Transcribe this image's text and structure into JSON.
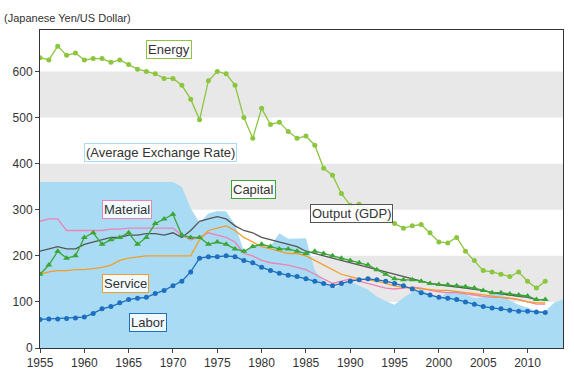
{
  "chart_data": {
    "type": "line",
    "ylabel": "(Japanese Yen/US Dollar)",
    "x": [
      1955,
      1956,
      1957,
      1958,
      1959,
      1960,
      1961,
      1962,
      1963,
      1964,
      1965,
      1966,
      1967,
      1968,
      1969,
      1970,
      1971,
      1972,
      1973,
      1974,
      1975,
      1976,
      1977,
      1978,
      1979,
      1980,
      1981,
      1982,
      1983,
      1984,
      1985,
      1986,
      1987,
      1988,
      1989,
      1990,
      1991,
      1992,
      1993,
      1994,
      1995,
      1996,
      1997,
      1998,
      1999,
      2000,
      2001,
      2002,
      2003,
      2004,
      2005,
      2006,
      2007,
      2008,
      2009,
      2010,
      2011,
      2012,
      2013,
      2014
    ],
    "xlim": [
      1955,
      2014
    ],
    "xticks": [
      1955,
      1960,
      1965,
      1970,
      1975,
      1980,
      1985,
      1990,
      1995,
      2000,
      2005,
      2010
    ],
    "ylim": [
      0,
      690
    ],
    "yticks": [
      0,
      100,
      200,
      300,
      400,
      500,
      600
    ],
    "grid": true,
    "series": [
      {
        "name": "(Average Exchange Rate)",
        "type": "area",
        "color": "#a9dcf4",
        "values": [
          360,
          360,
          360,
          360,
          360,
          360,
          360,
          360,
          360,
          360,
          360,
          360,
          360,
          360,
          360,
          360,
          350,
          303,
          272,
          292,
          297,
          296,
          268,
          210,
          219,
          227,
          221,
          249,
          237,
          237,
          238,
          168,
          145,
          128,
          138,
          145,
          135,
          127,
          111,
          102,
          94,
          109,
          121,
          131,
          114,
          108,
          122,
          125,
          116,
          108,
          110,
          116,
          118,
          103,
          94,
          88,
          80,
          80,
          98,
          106
        ]
      },
      {
        "name": "Energy",
        "type": "line",
        "color": "#8cc63f",
        "marker": "circle",
        "line_style": "solid",
        "values": [
          630,
          625,
          655,
          635,
          640,
          625,
          628,
          628,
          620,
          625,
          615,
          605,
          600,
          595,
          585,
          585,
          570,
          540,
          495,
          580,
          600,
          595,
          570,
          500,
          455,
          520,
          485,
          490,
          470,
          455,
          460,
          440,
          390,
          375,
          335,
          310,
          312,
          300,
          285,
          278,
          270,
          260,
          265,
          268,
          250,
          230,
          228,
          240,
          210,
          190,
          168,
          165,
          160,
          155,
          165,
          145,
          130,
          145,
          null,
          null
        ]
      },
      {
        "name": "Material",
        "type": "line",
        "color": "#ee82b4",
        "line_style": "solid",
        "values": [
          275,
          280,
          280,
          255,
          255,
          255,
          255,
          255,
          258,
          258,
          260,
          260,
          260,
          260,
          260,
          260,
          245,
          235,
          240,
          250,
          245,
          240,
          230,
          205,
          200,
          190,
          185,
          183,
          180,
          175,
          170,
          160,
          150,
          140,
          145,
          150,
          145,
          140,
          135,
          130,
          128,
          130,
          132,
          130,
          125,
          122,
          120,
          120,
          118,
          115,
          112,
          110,
          110,
          108,
          105,
          100,
          95,
          95,
          null,
          null
        ]
      },
      {
        "name": "Output (GDP)",
        "type": "line",
        "color": "#555555",
        "line_style": "solid",
        "values": [
          210,
          215,
          220,
          215,
          215,
          225,
          230,
          235,
          240,
          240,
          245,
          245,
          248,
          248,
          245,
          250,
          240,
          255,
          275,
          280,
          285,
          280,
          265,
          255,
          250,
          240,
          235,
          230,
          225,
          220,
          210,
          205,
          200,
          195,
          190,
          185,
          180,
          175,
          170,
          165,
          160,
          155,
          150,
          145,
          140,
          137,
          135,
          133,
          130,
          127,
          125,
          120,
          118,
          115,
          112,
          110,
          105,
          105,
          null,
          null
        ]
      },
      {
        "name": "Service",
        "type": "line",
        "color": "#f39c2a",
        "line_style": "solid",
        "values": [
          160,
          165,
          168,
          168,
          170,
          170,
          172,
          175,
          180,
          190,
          195,
          198,
          200,
          200,
          200,
          200,
          200,
          200,
          235,
          255,
          260,
          265,
          255,
          240,
          230,
          220,
          215,
          210,
          205,
          205,
          200,
          190,
          180,
          170,
          160,
          155,
          150,
          148,
          145,
          140,
          135,
          132,
          130,
          128,
          127,
          125,
          125,
          122,
          120,
          118,
          115,
          112,
          110,
          108,
          105,
          100,
          98,
          98,
          null,
          null
        ]
      },
      {
        "name": "Capital",
        "type": "line",
        "color": "#3aa635",
        "marker": "triangle",
        "line_style": "solid",
        "values": [
          160,
          180,
          210,
          195,
          200,
          240,
          250,
          225,
          235,
          240,
          250,
          225,
          240,
          270,
          280,
          290,
          245,
          240,
          240,
          225,
          230,
          225,
          215,
          210,
          220,
          225,
          220,
          215,
          215,
          210,
          205,
          210,
          205,
          200,
          195,
          190,
          185,
          180,
          170,
          160,
          150,
          148,
          148,
          145,
          140,
          138,
          137,
          135,
          133,
          130,
          125,
          120,
          120,
          117,
          115,
          113,
          105,
          105,
          null,
          null
        ]
      },
      {
        "name": "Labor",
        "type": "line",
        "color": "#1f6fc0",
        "marker": "circle",
        "line_style": "solid",
        "values": [
          62,
          63,
          63,
          64,
          65,
          67,
          75,
          85,
          90,
          98,
          105,
          108,
          110,
          118,
          125,
          135,
          145,
          165,
          195,
          198,
          198,
          200,
          198,
          190,
          185,
          175,
          168,
          162,
          158,
          155,
          150,
          145,
          140,
          135,
          140,
          145,
          148,
          150,
          148,
          145,
          140,
          135,
          128,
          120,
          115,
          110,
          108,
          105,
          100,
          95,
          90,
          87,
          85,
          82,
          80,
          80,
          78,
          77,
          null,
          null
        ]
      }
    ]
  }
}
